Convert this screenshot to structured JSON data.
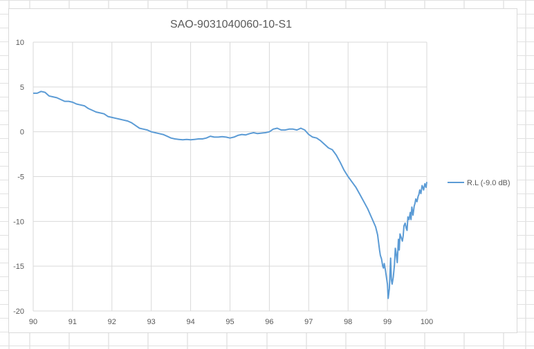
{
  "chart_data": {
    "type": "line",
    "title": "SAO-9031040060-10-S1",
    "xlabel": "",
    "ylabel": "",
    "xlim": [
      90,
      100
    ],
    "ylim": [
      -20,
      10
    ],
    "x_ticks": [
      "90",
      "91",
      "92",
      "93",
      "94",
      "95",
      "96",
      "97",
      "98",
      "99",
      "100"
    ],
    "y_ticks": [
      "10",
      "5",
      "0",
      "-5",
      "-10",
      "-15",
      "-20"
    ],
    "grid": true,
    "legend_position": "right",
    "series": [
      {
        "name": "R.L (-9.0 dB)",
        "color": "#5b9bd5",
        "x": [
          90.0,
          90.1,
          90.2,
          90.3,
          90.4,
          90.5,
          90.6,
          90.7,
          90.8,
          90.9,
          91.0,
          91.1,
          91.2,
          91.3,
          91.4,
          91.5,
          91.6,
          91.7,
          91.8,
          91.9,
          92.0,
          92.1,
          92.2,
          92.3,
          92.4,
          92.5,
          92.6,
          92.7,
          92.8,
          92.9,
          93.0,
          93.1,
          93.2,
          93.3,
          93.4,
          93.5,
          93.6,
          93.7,
          93.8,
          93.9,
          94.0,
          94.1,
          94.2,
          94.3,
          94.4,
          94.5,
          94.6,
          94.7,
          94.8,
          94.9,
          95.0,
          95.1,
          95.2,
          95.3,
          95.4,
          95.5,
          95.6,
          95.7,
          95.8,
          95.9,
          96.0,
          96.1,
          96.2,
          96.3,
          96.4,
          96.5,
          96.6,
          96.7,
          96.8,
          96.9,
          97.0,
          97.1,
          97.2,
          97.3,
          97.4,
          97.5,
          97.6,
          97.7,
          97.8,
          97.9,
          98.0,
          98.1,
          98.2,
          98.3,
          98.4,
          98.5,
          98.6,
          98.7,
          98.75,
          98.8,
          98.82,
          98.85,
          98.88,
          98.9,
          98.92,
          98.95,
          99.0,
          99.02,
          99.05,
          99.08,
          99.1,
          99.12,
          99.15,
          99.18,
          99.2,
          99.22,
          99.25,
          99.28,
          99.3,
          99.32,
          99.35,
          99.38,
          99.4,
          99.42,
          99.45,
          99.48,
          99.5,
          99.52,
          99.55,
          99.58,
          99.6,
          99.62,
          99.65,
          99.68,
          99.7,
          99.72,
          99.75,
          99.78,
          99.8,
          99.82,
          99.85,
          99.88,
          99.9,
          99.92,
          99.95,
          99.98,
          100.0
        ],
        "y": [
          4.3,
          4.3,
          4.5,
          4.4,
          4.0,
          3.9,
          3.8,
          3.6,
          3.4,
          3.4,
          3.3,
          3.1,
          3.0,
          2.9,
          2.6,
          2.4,
          2.2,
          2.1,
          2.0,
          1.7,
          1.6,
          1.5,
          1.4,
          1.3,
          1.2,
          1.0,
          0.7,
          0.4,
          0.3,
          0.2,
          0.0,
          -0.1,
          -0.2,
          -0.3,
          -0.5,
          -0.7,
          -0.8,
          -0.85,
          -0.9,
          -0.85,
          -0.9,
          -0.85,
          -0.8,
          -0.8,
          -0.7,
          -0.5,
          -0.6,
          -0.6,
          -0.55,
          -0.6,
          -0.7,
          -0.6,
          -0.4,
          -0.3,
          -0.35,
          -0.2,
          -0.1,
          -0.2,
          -0.15,
          -0.1,
          0.0,
          0.3,
          0.4,
          0.2,
          0.2,
          0.3,
          0.3,
          0.2,
          0.4,
          0.2,
          -0.3,
          -0.6,
          -0.7,
          -1.0,
          -1.4,
          -1.8,
          -2.0,
          -2.6,
          -3.4,
          -4.3,
          -5.0,
          -5.6,
          -6.2,
          -7.0,
          -7.8,
          -8.6,
          -9.6,
          -10.6,
          -11.5,
          -13.2,
          -13.8,
          -14.2,
          -15.0,
          -15.2,
          -14.7,
          -15.5,
          -17.0,
          -18.6,
          -17.5,
          -14.1,
          -16.5,
          -17.0,
          -16.2,
          -14.8,
          -13.0,
          -13.5,
          -14.6,
          -12.0,
          -13.2,
          -11.4,
          -11.8,
          -12.2,
          -11.6,
          -10.5,
          -10.2,
          -10.8,
          -11.0,
          -9.5,
          -9.8,
          -9.0,
          -9.8,
          -8.4,
          -9.3,
          -8.3,
          -8.0,
          -7.5,
          -7.8,
          -7.2,
          -7.0,
          -6.5,
          -6.9,
          -6.0,
          -6.2,
          -6.5,
          -5.8,
          -6.2,
          -5.6
        ]
      }
    ]
  }
}
